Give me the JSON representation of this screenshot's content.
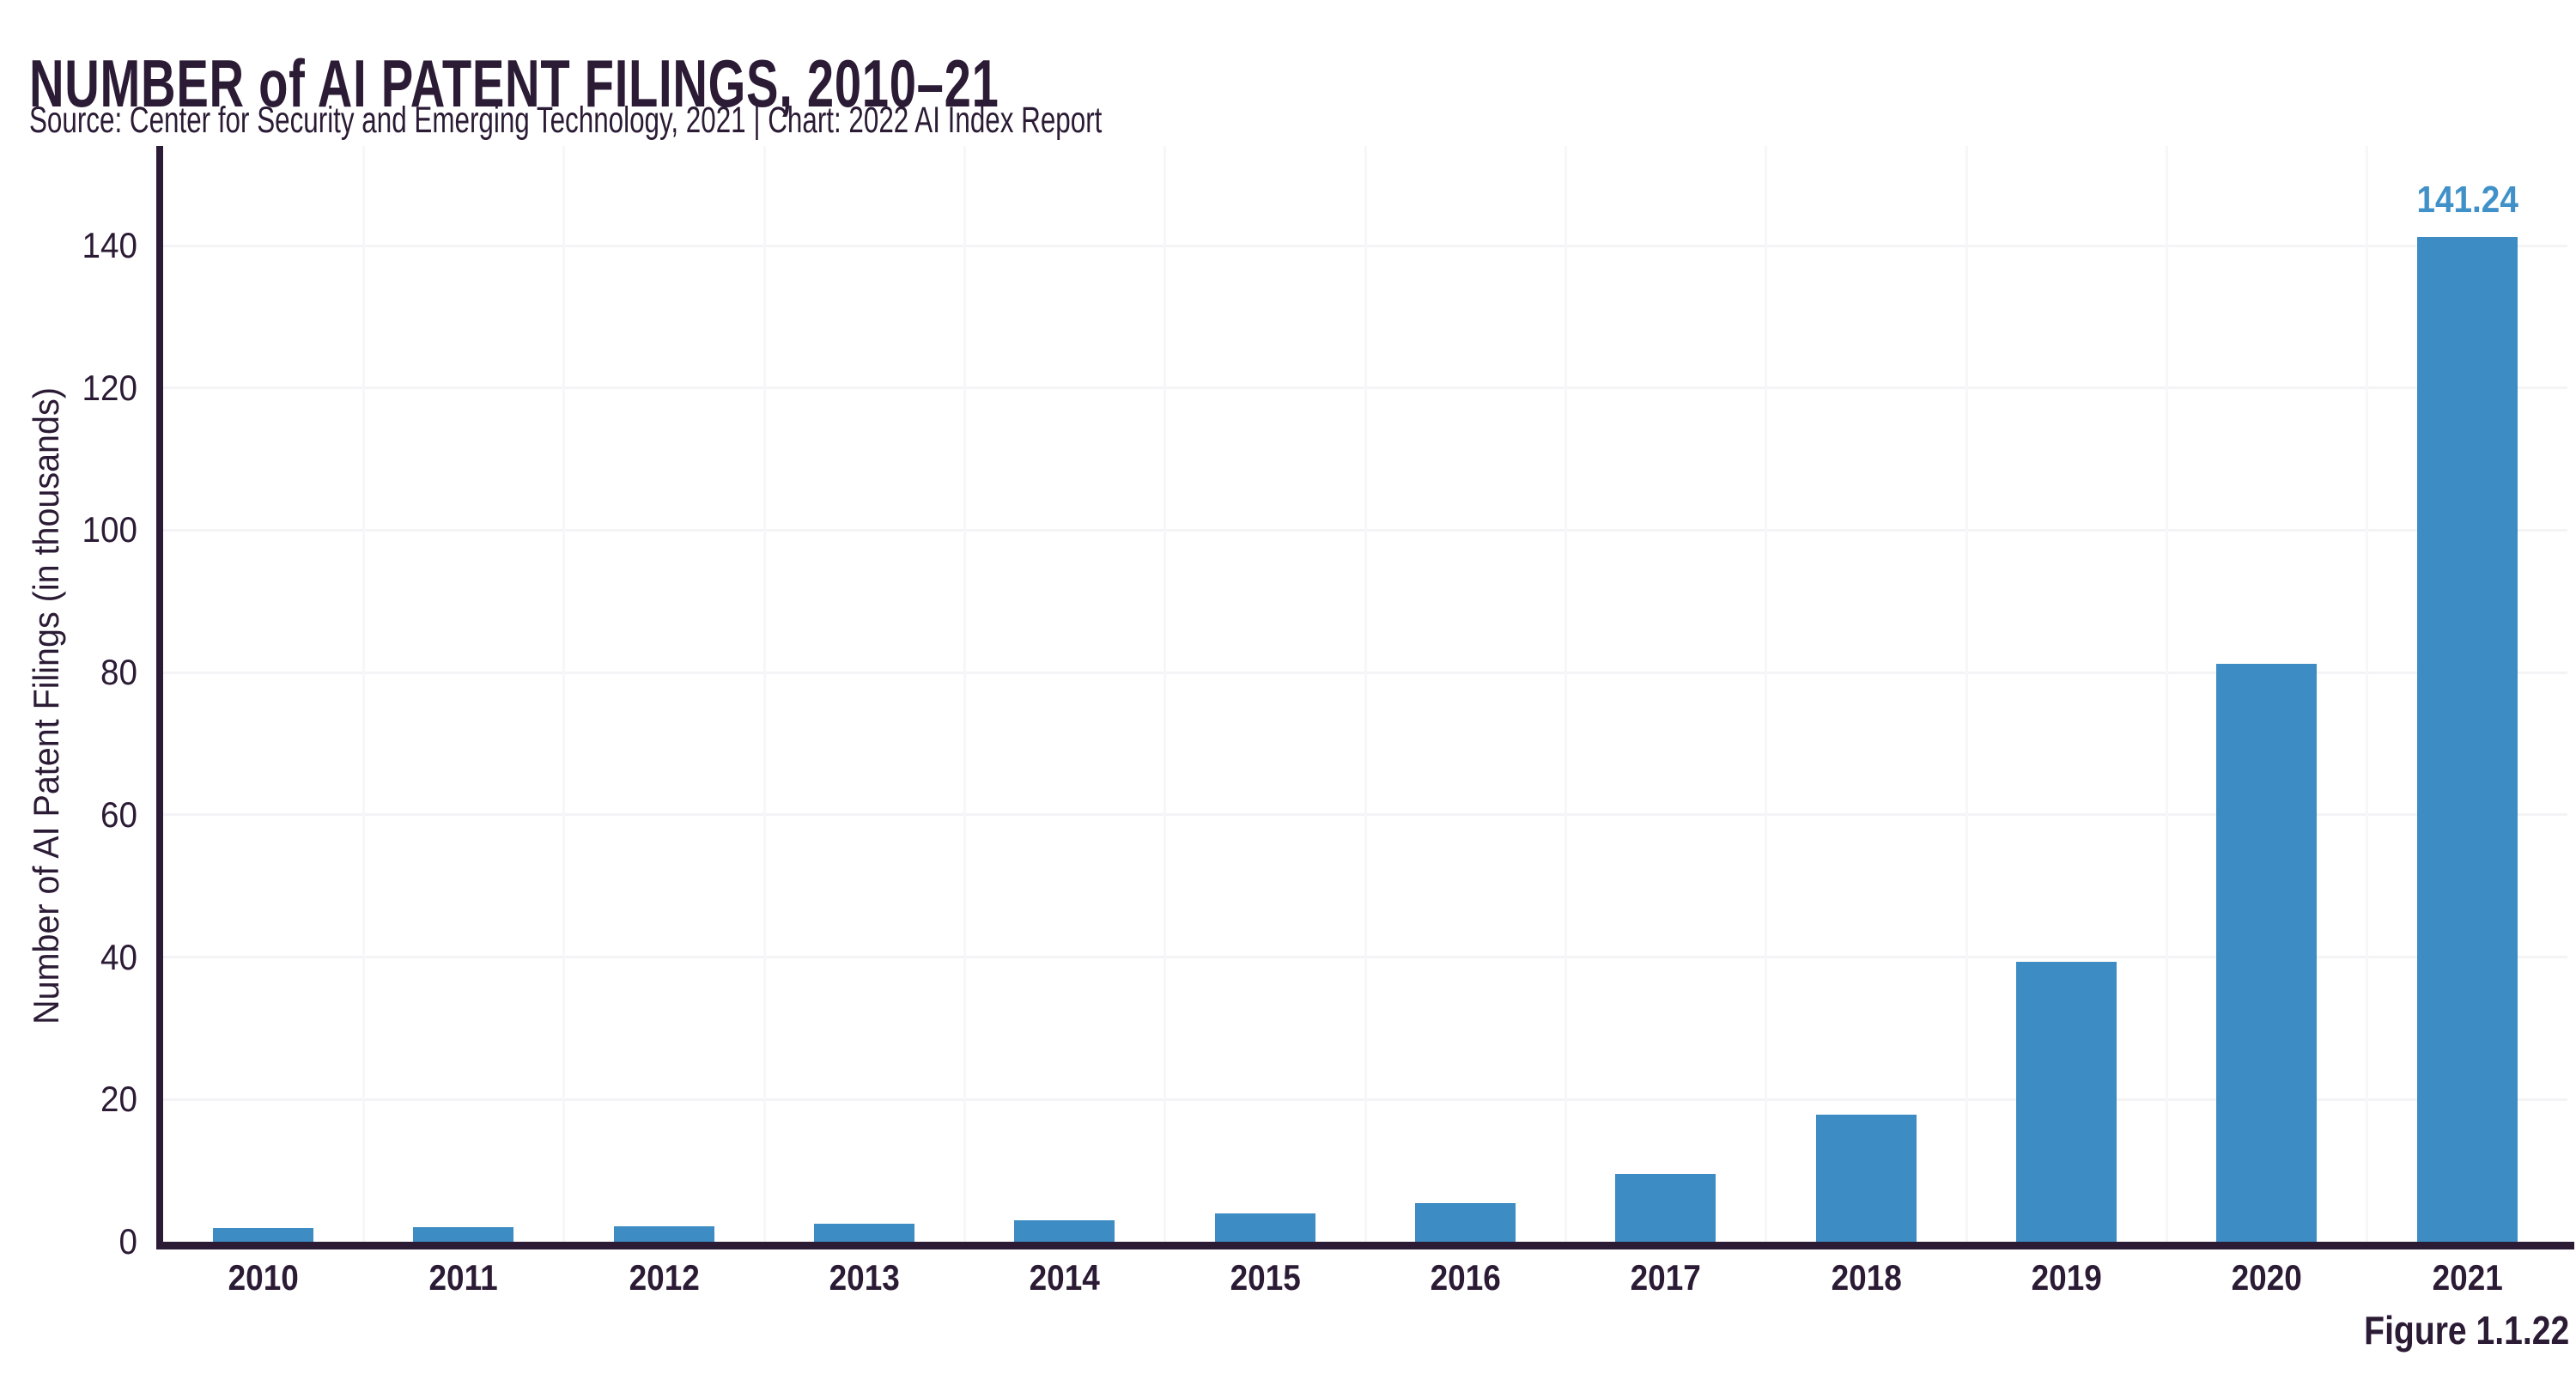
{
  "header": {
    "title": "NUMBER of AI PATENT FILINGS, 2010–21",
    "source_line": "Source: Center for Security and Emerging Technology, 2021 | Chart: 2022 AI Index Report"
  },
  "chart_data": {
    "type": "bar",
    "title": "NUMBER of AI PATENT FILINGS, 2010–21",
    "categories": [
      "2010",
      "2011",
      "2012",
      "2013",
      "2014",
      "2015",
      "2016",
      "2017",
      "2018",
      "2019",
      "2020",
      "2021"
    ],
    "values": [
      1.9,
      2.0,
      2.2,
      2.5,
      3.0,
      4.0,
      5.4,
      9.6,
      17.9,
      39.4,
      81.2,
      141.24
    ],
    "value_label": {
      "index": 11,
      "text": "141.24"
    },
    "xlabel": "",
    "ylabel": "Number of AI Patent Filings (in thousands)",
    "yticks": [
      0,
      20,
      40,
      60,
      80,
      100,
      120,
      140
    ],
    "ylim": [
      0,
      154
    ],
    "grid": "horizontal gridlines at 20-unit steps plus faint vertical category separators",
    "legend": "none",
    "bar_color": "#3d8cc4",
    "value_label_color": "#4191c9",
    "axis_color": "#2b1b35",
    "gridline_color": "#f4f4f6"
  },
  "footer": {
    "figure_label": "Figure 1.1.22"
  }
}
